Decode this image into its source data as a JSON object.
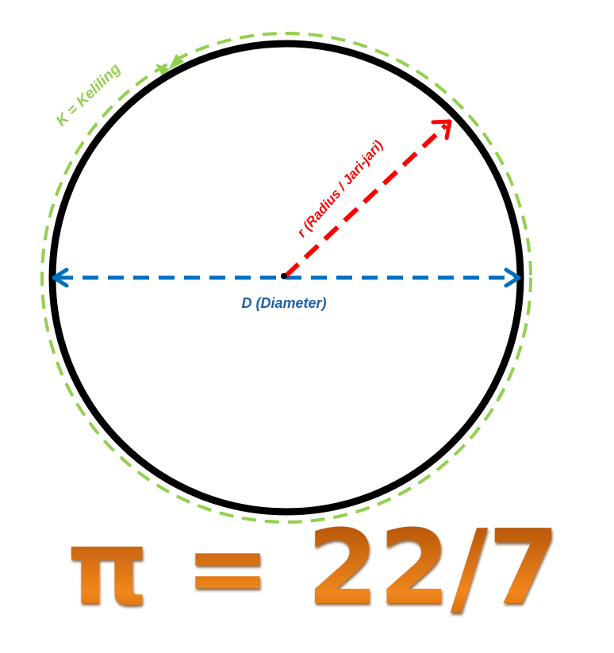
{
  "labels": {
    "circumference": "K = Keliling",
    "radius": "r (Radius / Jari-jari)",
    "diameter": "D (Diameter)",
    "formula": "π = 22/7"
  },
  "colors": {
    "circle": "#000000",
    "circumference": "#92d050",
    "radius": "#ff0000",
    "diameter": "#0070c0",
    "formula": "#e8771a"
  }
}
